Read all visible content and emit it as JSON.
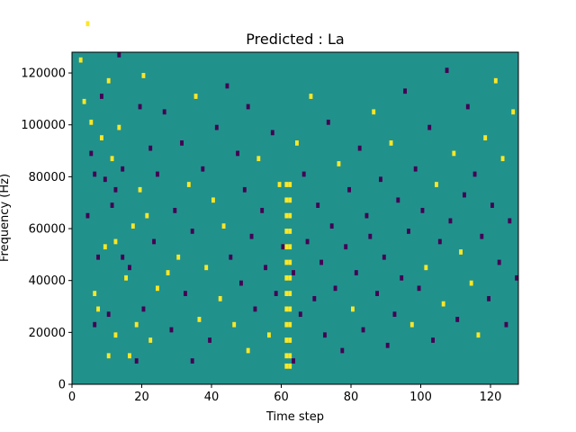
{
  "chart_data": {
    "type": "heatmap",
    "title": "Predicted : La",
    "xlabel": "Time step",
    "ylabel": "Frequency (Hz)",
    "xlim": [
      0,
      128
    ],
    "ylim": [
      0,
      128000
    ],
    "x_ticks": [
      "0",
      "20",
      "40",
      "60",
      "80",
      "100",
      "120"
    ],
    "y_ticks": [
      "0",
      "20000",
      "40000",
      "60000",
      "80000",
      "100000",
      "120000"
    ],
    "cell_width_steps": 1,
    "cell_height_hz": 2000,
    "colors": {
      "background": "#21918c",
      "high": "#fde725",
      "low": "#440154"
    },
    "cells": [
      [
        2,
        62,
        "h"
      ],
      [
        3,
        54,
        "h"
      ],
      [
        4,
        69,
        "h"
      ],
      [
        4,
        32,
        "l"
      ],
      [
        5,
        44,
        "l"
      ],
      [
        5,
        50,
        "h"
      ],
      [
        6,
        17,
        "h"
      ],
      [
        6,
        11,
        "l"
      ],
      [
        6,
        40,
        "l"
      ],
      [
        7,
        24,
        "l"
      ],
      [
        7,
        14,
        "h"
      ],
      [
        8,
        55,
        "l"
      ],
      [
        8,
        47,
        "h"
      ],
      [
        9,
        39,
        "l"
      ],
      [
        9,
        26,
        "h"
      ],
      [
        10,
        5,
        "h"
      ],
      [
        10,
        13,
        "l"
      ],
      [
        10,
        58,
        "h"
      ],
      [
        11,
        34,
        "l"
      ],
      [
        11,
        43,
        "h"
      ],
      [
        12,
        9,
        "h"
      ],
      [
        12,
        27,
        "h"
      ],
      [
        12,
        37,
        "l"
      ],
      [
        13,
        63,
        "l"
      ],
      [
        13,
        49,
        "h"
      ],
      [
        14,
        24,
        "l"
      ],
      [
        14,
        41,
        "l"
      ],
      [
        15,
        20,
        "h"
      ],
      [
        16,
        5,
        "h"
      ],
      [
        16,
        22,
        "l"
      ],
      [
        17,
        30,
        "h"
      ],
      [
        18,
        4,
        "l"
      ],
      [
        18,
        11,
        "h"
      ],
      [
        19,
        53,
        "l"
      ],
      [
        19,
        37,
        "h"
      ],
      [
        20,
        14,
        "l"
      ],
      [
        20,
        59,
        "h"
      ],
      [
        21,
        32,
        "h"
      ],
      [
        22,
        8,
        "h"
      ],
      [
        22,
        45,
        "l"
      ],
      [
        23,
        27,
        "l"
      ],
      [
        24,
        18,
        "h"
      ],
      [
        24,
        40,
        "l"
      ],
      [
        26,
        52,
        "l"
      ],
      [
        27,
        21,
        "h"
      ],
      [
        28,
        10,
        "l"
      ],
      [
        29,
        33,
        "l"
      ],
      [
        30,
        24,
        "h"
      ],
      [
        31,
        46,
        "l"
      ],
      [
        32,
        17,
        "l"
      ],
      [
        33,
        38,
        "h"
      ],
      [
        34,
        4,
        "l"
      ],
      [
        34,
        29,
        "l"
      ],
      [
        35,
        55,
        "h"
      ],
      [
        36,
        12,
        "h"
      ],
      [
        37,
        41,
        "l"
      ],
      [
        38,
        22,
        "h"
      ],
      [
        39,
        8,
        "l"
      ],
      [
        40,
        35,
        "h"
      ],
      [
        41,
        49,
        "l"
      ],
      [
        42,
        16,
        "h"
      ],
      [
        43,
        30,
        "h"
      ],
      [
        44,
        57,
        "l"
      ],
      [
        45,
        24,
        "l"
      ],
      [
        46,
        11,
        "h"
      ],
      [
        47,
        44,
        "l"
      ],
      [
        48,
        19,
        "l"
      ],
      [
        49,
        37,
        "l"
      ],
      [
        50,
        6,
        "h"
      ],
      [
        50,
        53,
        "l"
      ],
      [
        51,
        28,
        "l"
      ],
      [
        52,
        14,
        "l"
      ],
      [
        53,
        43,
        "h"
      ],
      [
        54,
        33,
        "l"
      ],
      [
        55,
        22,
        "l"
      ],
      [
        56,
        9,
        "h"
      ],
      [
        57,
        48,
        "l"
      ],
      [
        58,
        17,
        "l"
      ],
      [
        59,
        38,
        "h"
      ],
      [
        60,
        26,
        "l"
      ],
      [
        61,
        3,
        "h"
      ],
      [
        61,
        5,
        "h"
      ],
      [
        61,
        8,
        "h"
      ],
      [
        61,
        11,
        "h"
      ],
      [
        61,
        14,
        "h"
      ],
      [
        61,
        17,
        "h"
      ],
      [
        61,
        20,
        "h"
      ],
      [
        61,
        23,
        "h"
      ],
      [
        61,
        26,
        "h"
      ],
      [
        61,
        29,
        "h"
      ],
      [
        61,
        32,
        "h"
      ],
      [
        61,
        35,
        "h"
      ],
      [
        61,
        38,
        "h"
      ],
      [
        62,
        3,
        "h"
      ],
      [
        62,
        5,
        "h"
      ],
      [
        62,
        8,
        "h"
      ],
      [
        62,
        11,
        "h"
      ],
      [
        62,
        14,
        "h"
      ],
      [
        62,
        17,
        "h"
      ],
      [
        62,
        20,
        "h"
      ],
      [
        62,
        23,
        "h"
      ],
      [
        62,
        26,
        "h"
      ],
      [
        62,
        29,
        "h"
      ],
      [
        62,
        32,
        "h"
      ],
      [
        62,
        35,
        "h"
      ],
      [
        62,
        38,
        "h"
      ],
      [
        63,
        4,
        "l"
      ],
      [
        63,
        21,
        "l"
      ],
      [
        64,
        46,
        "h"
      ],
      [
        65,
        13,
        "l"
      ],
      [
        66,
        40,
        "l"
      ],
      [
        67,
        27,
        "l"
      ],
      [
        68,
        55,
        "h"
      ],
      [
        69,
        16,
        "l"
      ],
      [
        70,
        34,
        "l"
      ],
      [
        71,
        23,
        "l"
      ],
      [
        72,
        9,
        "l"
      ],
      [
        73,
        50,
        "l"
      ],
      [
        74,
        30,
        "l"
      ],
      [
        75,
        18,
        "l"
      ],
      [
        76,
        42,
        "h"
      ],
      [
        77,
        6,
        "l"
      ],
      [
        78,
        26,
        "l"
      ],
      [
        79,
        37,
        "l"
      ],
      [
        80,
        14,
        "h"
      ],
      [
        81,
        21,
        "l"
      ],
      [
        82,
        45,
        "l"
      ],
      [
        83,
        10,
        "l"
      ],
      [
        84,
        32,
        "l"
      ],
      [
        85,
        28,
        "l"
      ],
      [
        86,
        52,
        "h"
      ],
      [
        87,
        17,
        "l"
      ],
      [
        88,
        39,
        "l"
      ],
      [
        89,
        24,
        "l"
      ],
      [
        90,
        7,
        "l"
      ],
      [
        91,
        46,
        "h"
      ],
      [
        92,
        13,
        "l"
      ],
      [
        93,
        35,
        "l"
      ],
      [
        94,
        20,
        "l"
      ],
      [
        95,
        56,
        "l"
      ],
      [
        96,
        29,
        "l"
      ],
      [
        97,
        11,
        "h"
      ],
      [
        98,
        41,
        "l"
      ],
      [
        99,
        18,
        "l"
      ],
      [
        100,
        33,
        "l"
      ],
      [
        101,
        22,
        "h"
      ],
      [
        102,
        49,
        "l"
      ],
      [
        103,
        8,
        "l"
      ],
      [
        104,
        38,
        "h"
      ],
      [
        105,
        27,
        "l"
      ],
      [
        106,
        15,
        "h"
      ],
      [
        107,
        60,
        "l"
      ],
      [
        108,
        31,
        "l"
      ],
      [
        109,
        44,
        "h"
      ],
      [
        110,
        12,
        "l"
      ],
      [
        111,
        25,
        "h"
      ],
      [
        112,
        36,
        "l"
      ],
      [
        113,
        53,
        "l"
      ],
      [
        114,
        19,
        "h"
      ],
      [
        115,
        40,
        "l"
      ],
      [
        116,
        9,
        "h"
      ],
      [
        117,
        28,
        "l"
      ],
      [
        118,
        47,
        "h"
      ],
      [
        119,
        16,
        "l"
      ],
      [
        120,
        34,
        "l"
      ],
      [
        121,
        58,
        "h"
      ],
      [
        122,
        23,
        "l"
      ],
      [
        123,
        43,
        "h"
      ],
      [
        124,
        11,
        "l"
      ],
      [
        125,
        31,
        "l"
      ],
      [
        126,
        52,
        "h"
      ],
      [
        127,
        20,
        "l"
      ]
    ]
  }
}
